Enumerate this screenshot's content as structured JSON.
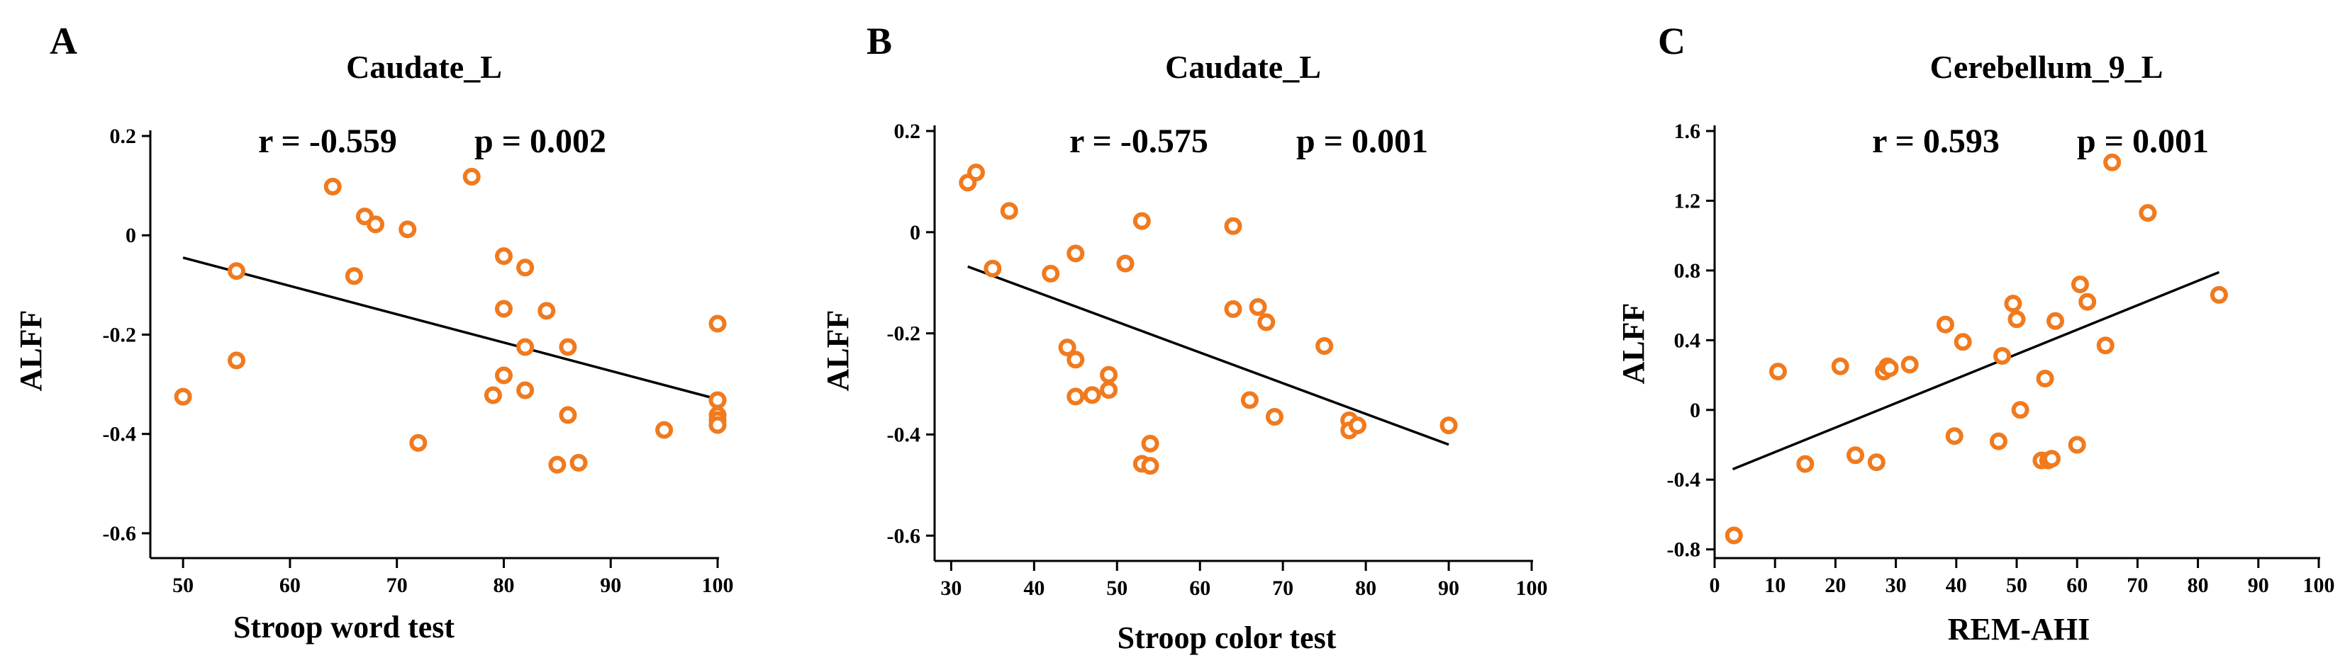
{
  "colors": {
    "point": "#f07a1e",
    "point_fill": "#ffffff",
    "axis": "#000000",
    "fit": "#000000"
  },
  "chart_data": [
    {
      "panel_label": "A",
      "type": "scatter",
      "title": "Caudate_L",
      "stats": {
        "r": "r = -0.559",
        "p": "p  =  0.002"
      },
      "xlabel": "Stroop word test",
      "ylabel": "ALFF",
      "xlim": [
        48,
        100
      ],
      "ylim": [
        -0.65,
        0.2
      ],
      "xticks": [
        50,
        60,
        70,
        80,
        90,
        100
      ],
      "yticks": [
        0.2,
        0,
        -0.2,
        -0.4,
        -0.6
      ],
      "xtick_labels": [
        "50",
        "60",
        "70",
        "80",
        "90",
        "100"
      ],
      "ytick_labels": [
        "0.2",
        "0",
        "-0.2",
        "-0.4",
        "-0.6"
      ],
      "fit_line": {
        "x": [
          50,
          100
        ],
        "y": [
          -0.045,
          -0.33
        ]
      },
      "points": [
        {
          "x": 50,
          "y": -0.325
        },
        {
          "x": 55,
          "y": -0.072
        },
        {
          "x": 55,
          "y": -0.252
        },
        {
          "x": 64,
          "y": 0.098
        },
        {
          "x": 66,
          "y": -0.082
        },
        {
          "x": 67,
          "y": 0.038
        },
        {
          "x": 68,
          "y": 0.022
        },
        {
          "x": 71,
          "y": 0.012
        },
        {
          "x": 72,
          "y": -0.418
        },
        {
          "x": 77,
          "y": 0.118
        },
        {
          "x": 79,
          "y": -0.322
        },
        {
          "x": 80,
          "y": -0.042
        },
        {
          "x": 80,
          "y": -0.148
        },
        {
          "x": 80,
          "y": -0.282
        },
        {
          "x": 82,
          "y": -0.065
        },
        {
          "x": 82,
          "y": -0.225
        },
        {
          "x": 82,
          "y": -0.312
        },
        {
          "x": 84,
          "y": -0.152
        },
        {
          "x": 85,
          "y": -0.462
        },
        {
          "x": 86,
          "y": -0.225
        },
        {
          "x": 86,
          "y": -0.362
        },
        {
          "x": 87,
          "y": -0.458
        },
        {
          "x": 95,
          "y": -0.392
        },
        {
          "x": 100,
          "y": -0.178
        },
        {
          "x": 100,
          "y": -0.332
        },
        {
          "x": 100,
          "y": -0.362
        },
        {
          "x": 100,
          "y": -0.372
        },
        {
          "x": 100,
          "y": -0.382
        }
      ]
    },
    {
      "panel_label": "B",
      "type": "scatter",
      "title": "Caudate_L",
      "stats": {
        "r": "r = -0.575",
        "p": "p  =  0.001"
      },
      "xlabel": "Stroop color test",
      "ylabel": "ALFF",
      "xlim": [
        28,
        100
      ],
      "ylim": [
        -0.65,
        0.2
      ],
      "xticks": [
        30,
        40,
        50,
        60,
        70,
        80,
        90,
        100
      ],
      "yticks": [
        0.2,
        0,
        -0.2,
        -0.4,
        -0.6
      ],
      "xtick_labels": [
        "30",
        "40",
        "50",
        "60",
        "70",
        "80",
        "90",
        "100"
      ],
      "ytick_labels": [
        "0.2",
        "0",
        "-0.2",
        "-0.4",
        "-0.6"
      ],
      "fit_line": {
        "x": [
          32,
          90
        ],
        "y": [
          -0.068,
          -0.42
        ]
      },
      "points": [
        {
          "x": 32,
          "y": 0.098
        },
        {
          "x": 33,
          "y": 0.118
        },
        {
          "x": 35,
          "y": -0.072
        },
        {
          "x": 37,
          "y": 0.042
        },
        {
          "x": 42,
          "y": -0.082
        },
        {
          "x": 44,
          "y": -0.228
        },
        {
          "x": 45,
          "y": -0.042
        },
        {
          "x": 45,
          "y": -0.252
        },
        {
          "x": 45,
          "y": -0.325
        },
        {
          "x": 47,
          "y": -0.322
        },
        {
          "x": 49,
          "y": -0.282
        },
        {
          "x": 49,
          "y": -0.312
        },
        {
          "x": 51,
          "y": -0.062
        },
        {
          "x": 53,
          "y": 0.022
        },
        {
          "x": 53,
          "y": -0.458
        },
        {
          "x": 54,
          "y": -0.418
        },
        {
          "x": 54,
          "y": -0.462
        },
        {
          "x": 64,
          "y": 0.012
        },
        {
          "x": 64,
          "y": -0.152
        },
        {
          "x": 66,
          "y": -0.332
        },
        {
          "x": 67,
          "y": -0.148
        },
        {
          "x": 68,
          "y": -0.178
        },
        {
          "x": 69,
          "y": -0.365
        },
        {
          "x": 75,
          "y": -0.225
        },
        {
          "x": 78,
          "y": -0.372
        },
        {
          "x": 78,
          "y": -0.392
        },
        {
          "x": 79,
          "y": -0.382
        },
        {
          "x": 90,
          "y": -0.382
        }
      ]
    },
    {
      "panel_label": "C",
      "type": "scatter",
      "title": "Cerebellum_9_L",
      "stats": {
        "r": "r = 0.593",
        "p": "p  =  0.001"
      },
      "xlabel": "REM-AHI",
      "ylabel": "ALFF",
      "xlim": [
        0,
        100
      ],
      "ylim": [
        -0.85,
        1.6
      ],
      "xticks": [
        0,
        10,
        20,
        30,
        40,
        50,
        60,
        70,
        80,
        90,
        100
      ],
      "yticks": [
        1.6,
        1.2,
        0.8,
        0.4,
        0,
        -0.4,
        -0.8
      ],
      "xtick_labels": [
        "0",
        "10",
        "20",
        "30",
        "40",
        "50",
        "60",
        "70",
        "80",
        "90",
        "100"
      ],
      "ytick_labels": [
        "1.6",
        "1.2",
        "0.8",
        "0.4",
        "0",
        "-0.4",
        "-0.8"
      ],
      "fit_line": {
        "x": [
          3,
          83.5
        ],
        "y": [
          -0.34,
          0.79
        ]
      },
      "points": [
        {
          "x": 3.2,
          "y": -0.72
        },
        {
          "x": 10.5,
          "y": 0.22
        },
        {
          "x": 15,
          "y": -0.31
        },
        {
          "x": 20.8,
          "y": 0.25
        },
        {
          "x": 23.3,
          "y": -0.26
        },
        {
          "x": 26.8,
          "y": -0.3
        },
        {
          "x": 28,
          "y": 0.22
        },
        {
          "x": 28.6,
          "y": 0.25
        },
        {
          "x": 29,
          "y": 0.24
        },
        {
          "x": 32.3,
          "y": 0.26
        },
        {
          "x": 38.2,
          "y": 0.49
        },
        {
          "x": 39.7,
          "y": -0.15
        },
        {
          "x": 41.1,
          "y": 0.39
        },
        {
          "x": 47,
          "y": -0.18
        },
        {
          "x": 47.6,
          "y": 0.31
        },
        {
          "x": 49.4,
          "y": 0.61
        },
        {
          "x": 50,
          "y": 0.52
        },
        {
          "x": 50.6,
          "y": 0
        },
        {
          "x": 54.1,
          "y": -0.29
        },
        {
          "x": 54.7,
          "y": 0.18
        },
        {
          "x": 55.2,
          "y": -0.29
        },
        {
          "x": 55.8,
          "y": -0.28
        },
        {
          "x": 56.4,
          "y": 0.51
        },
        {
          "x": 60,
          "y": -0.2
        },
        {
          "x": 60.5,
          "y": 0.72
        },
        {
          "x": 61.7,
          "y": 0.62
        },
        {
          "x": 64.7,
          "y": 0.37
        },
        {
          "x": 65.8,
          "y": 1.42
        },
        {
          "x": 71.7,
          "y": 1.13
        },
        {
          "x": 83.5,
          "y": 0.66
        }
      ]
    }
  ]
}
